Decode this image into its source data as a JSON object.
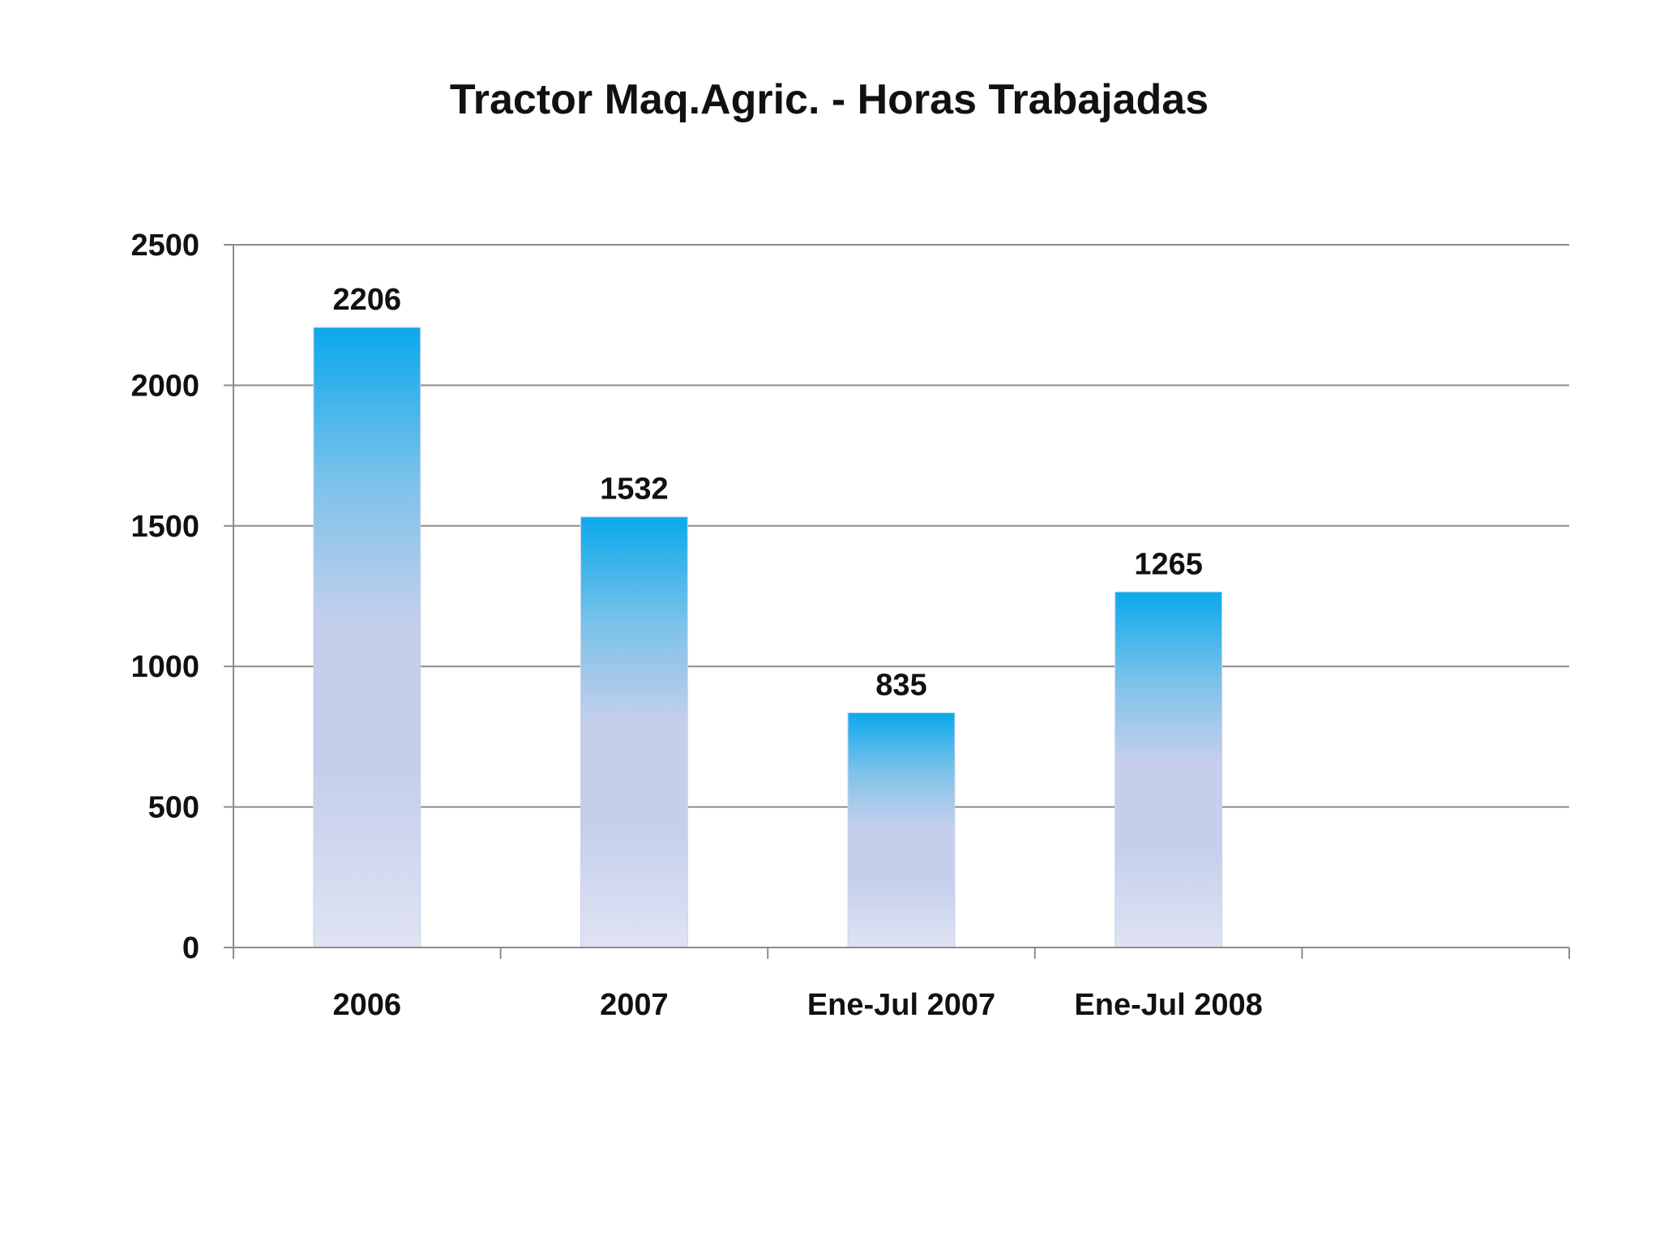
{
  "chart_data": {
    "type": "bar",
    "title": "Tractor Maq.Agric. -  Horas Trabajadas",
    "categories": [
      "2006",
      "2007",
      "Ene-Jul 2007",
      "Ene-Jul 2008"
    ],
    "values": [
      2206,
      1532,
      835,
      1265
    ],
    "data_labels": [
      "2206",
      "1532",
      "835",
      "1265"
    ],
    "xlabel": "",
    "ylabel": "",
    "ylim": [
      0,
      2500
    ],
    "yticks": [
      0,
      500,
      1000,
      1500,
      2000,
      2500
    ],
    "x_slots": 5,
    "grid": true,
    "legend": "none",
    "colors": {
      "bar_top": "#0aa9ec",
      "bar_mid": "#7cc2ea",
      "bar_lavender": "#c5cfec",
      "bar_bottom": "#dfe3f3",
      "gridline": "#8c8c8c",
      "axis": "#8c8c8c",
      "text": "#111111"
    }
  }
}
